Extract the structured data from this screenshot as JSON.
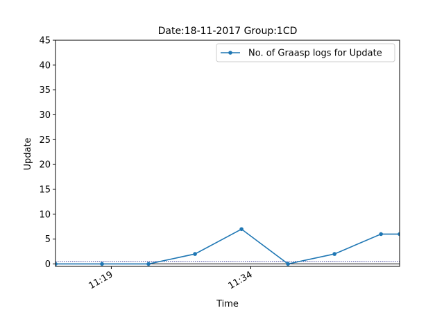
{
  "chart_data": {
    "type": "line",
    "title": "Date:18-11-2017  Group:1CD",
    "xlabel": "Time",
    "ylabel": "Update",
    "ylim": [
      -0.5,
      45
    ],
    "xlim": [
      "11:13",
      "11:50"
    ],
    "yticks": [
      0,
      5,
      10,
      15,
      20,
      25,
      30,
      35,
      40,
      45
    ],
    "xticks": [
      {
        "value": "11:19",
        "label": "11:19"
      },
      {
        "value": "11:34",
        "label": "11:34"
      }
    ],
    "legend": {
      "position": "top-right"
    },
    "series": [
      {
        "name": "No. of Graasp logs for Update",
        "color": "#1f77b4",
        "marker": "circle",
        "points": [
          {
            "x": "11:13",
            "y": 0
          },
          {
            "x": "11:18",
            "y": 0
          },
          {
            "x": "11:23",
            "y": 0
          },
          {
            "x": "11:28",
            "y": 2
          },
          {
            "x": "11:33",
            "y": 7
          },
          {
            "x": "11:38",
            "y": 0
          },
          {
            "x": "11:43",
            "y": 2
          },
          {
            "x": "11:48",
            "y": 6
          },
          {
            "x": "11:50",
            "y": 6
          }
        ]
      }
    ],
    "reference_lines": [
      {
        "y": 0,
        "color": "#000000",
        "style": "solid"
      },
      {
        "y": 0.5,
        "color": "#1a1a8c",
        "style": "dotted"
      }
    ]
  }
}
